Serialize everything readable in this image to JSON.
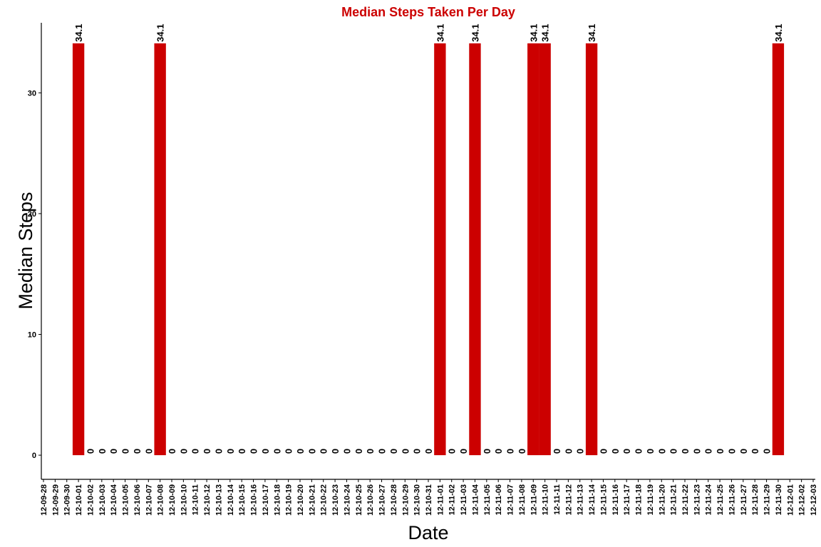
{
  "colors": {
    "bar": "#CC0000",
    "title": "#CC0000",
    "axis": "#000000"
  },
  "chart_data": {
    "type": "bar",
    "title": "Median Steps Taken Per Day",
    "xlabel": "Date",
    "ylabel": "Median Steps",
    "ylim": [
      -2,
      35.8
    ],
    "yticks": [
      0,
      10,
      20,
      30
    ],
    "grid": false,
    "legend": "none",
    "x_tick_labels": [
      "12-09-28",
      "12-09-29",
      "12-09-30",
      "12-10-01",
      "12-10-02",
      "12-10-03",
      "12-10-04",
      "12-10-05",
      "12-10-06",
      "12-10-07",
      "12-10-08",
      "12-10-09",
      "12-10-10",
      "12-10-11",
      "12-10-12",
      "12-10-13",
      "12-10-14",
      "12-10-15",
      "12-10-16",
      "12-10-17",
      "12-10-18",
      "12-10-19",
      "12-10-20",
      "12-10-21",
      "12-10-22",
      "12-10-23",
      "12-10-24",
      "12-10-25",
      "12-10-26",
      "12-10-27",
      "12-10-28",
      "12-10-29",
      "12-10-30",
      "12-10-31",
      "12-11-01",
      "12-11-02",
      "12-11-03",
      "12-11-04",
      "12-11-05",
      "12-11-06",
      "12-11-07",
      "12-11-08",
      "12-11-09",
      "12-11-10",
      "12-11-11",
      "12-11-12",
      "12-11-13",
      "12-11-14",
      "12-11-15",
      "12-11-16",
      "12-11-17",
      "12-11-18",
      "12-11-19",
      "12-11-20",
      "12-11-21",
      "12-11-22",
      "12-11-23",
      "12-11-24",
      "12-11-25",
      "12-11-26",
      "12-11-27",
      "12-11-28",
      "12-11-29",
      "12-11-30",
      "12-12-01",
      "12-12-02",
      "12-12-03"
    ],
    "categories": [
      "2012-10-01",
      "2012-10-02",
      "2012-10-03",
      "2012-10-04",
      "2012-10-05",
      "2012-10-06",
      "2012-10-07",
      "2012-10-08",
      "2012-10-09",
      "2012-10-10",
      "2012-10-11",
      "2012-10-12",
      "2012-10-13",
      "2012-10-14",
      "2012-10-15",
      "2012-10-16",
      "2012-10-17",
      "2012-10-18",
      "2012-10-19",
      "2012-10-20",
      "2012-10-21",
      "2012-10-22",
      "2012-10-23",
      "2012-10-24",
      "2012-10-25",
      "2012-10-26",
      "2012-10-27",
      "2012-10-28",
      "2012-10-29",
      "2012-10-30",
      "2012-10-31",
      "2012-11-01",
      "2012-11-02",
      "2012-11-03",
      "2012-11-04",
      "2012-11-05",
      "2012-11-06",
      "2012-11-07",
      "2012-11-08",
      "2012-11-09",
      "2012-11-10",
      "2012-11-11",
      "2012-11-12",
      "2012-11-13",
      "2012-11-14",
      "2012-11-15",
      "2012-11-16",
      "2012-11-17",
      "2012-11-18",
      "2012-11-19",
      "2012-11-20",
      "2012-11-21",
      "2012-11-22",
      "2012-11-23",
      "2012-11-24",
      "2012-11-25",
      "2012-11-26",
      "2012-11-27",
      "2012-11-28",
      "2012-11-29",
      "2012-11-30"
    ],
    "values": [
      34.1,
      0,
      0,
      0,
      0,
      0,
      0,
      34.1,
      0,
      0,
      0,
      0,
      0,
      0,
      0,
      0,
      0,
      0,
      0,
      0,
      0,
      0,
      0,
      0,
      0,
      0,
      0,
      0,
      0,
      0,
      0,
      34.1,
      0,
      0,
      34.1,
      0,
      0,
      0,
      0,
      34.1,
      34.1,
      0,
      0,
      0,
      34.1,
      0,
      0,
      0,
      0,
      0,
      0,
      0,
      0,
      0,
      0,
      0,
      0,
      0,
      0,
      0,
      34.1
    ],
    "data_labels": [
      "34.1",
      "0",
      "0",
      "0",
      "0",
      "0",
      "0",
      "34.1",
      "0",
      "0",
      "0",
      "0",
      "0",
      "0",
      "0",
      "0",
      "0",
      "0",
      "0",
      "0",
      "0",
      "0",
      "0",
      "0",
      "0",
      "0",
      "0",
      "0",
      "0",
      "0",
      "0",
      "34.1",
      "0",
      "0",
      "34.1",
      "0",
      "0",
      "0",
      "0",
      "34.1",
      "34.1",
      "0",
      "0",
      "0",
      "34.1",
      "0",
      "0",
      "0",
      "0",
      "0",
      "0",
      "0",
      "0",
      "0",
      "0",
      "0",
      "0",
      "0",
      "0",
      "0",
      "34.1"
    ]
  }
}
